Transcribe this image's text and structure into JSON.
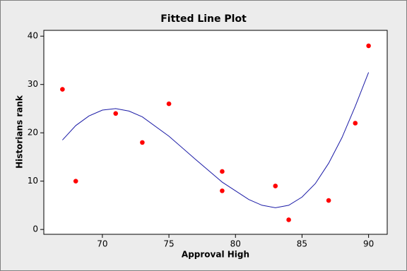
{
  "chart_data": {
    "type": "scatter",
    "title": "Fitted Line Plot",
    "xlabel": "Approval High",
    "ylabel": "Historians rank",
    "xlim": [
      65.6,
      91.4
    ],
    "ylim": [
      -1.0,
      41.2
    ],
    "xticks": [
      70,
      75,
      80,
      85,
      90
    ],
    "yticks": [
      0,
      10,
      20,
      30,
      40
    ],
    "series": [
      {
        "style": "markers",
        "color": "#ff0000",
        "x": [
          67,
          68,
          71,
          73,
          75,
          79,
          79,
          83,
          84,
          87,
          89,
          90
        ],
        "values": [
          29,
          10,
          24,
          18,
          26,
          12,
          8,
          9,
          2,
          6,
          22,
          38
        ]
      },
      {
        "style": "line",
        "color": "#1a1aa6",
        "x": [
          67,
          68,
          69,
          70,
          71,
          72,
          73,
          75,
          77,
          79,
          81,
          82,
          83,
          84,
          85,
          86,
          87,
          88,
          89,
          90
        ],
        "values": [
          18.5,
          21.5,
          23.5,
          24.7,
          25,
          24.5,
          23.3,
          19.3,
          14.5,
          9.8,
          6.2,
          5,
          4.5,
          5,
          6.7,
          9.5,
          13.7,
          19,
          25.5,
          32.5
        ]
      }
    ]
  }
}
